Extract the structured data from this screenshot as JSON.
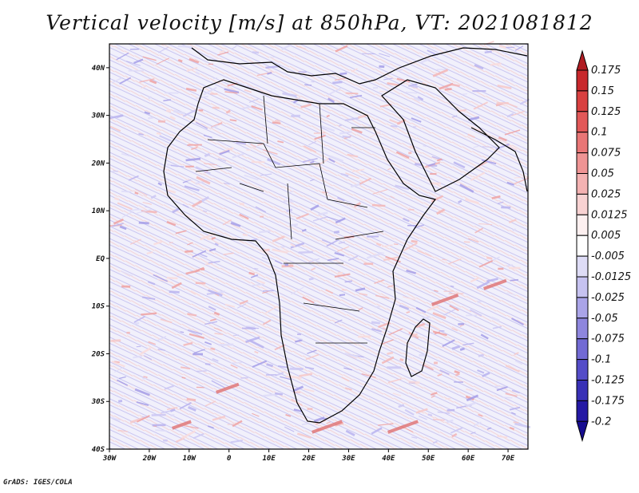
{
  "title": "Vertical velocity [m/s] at 850hPa, VT: 2021081812",
  "footer": "GrADS: IGES/COLA",
  "map": {
    "lon_range": [
      -30,
      75
    ],
    "lat_range": [
      -40,
      45
    ],
    "x_ticks": [
      "30W",
      "20W",
      "10W",
      "0",
      "10E",
      "20E",
      "30E",
      "40E",
      "50E",
      "60E",
      "70E"
    ],
    "y_ticks": [
      "40N",
      "30N",
      "20N",
      "10N",
      "EQ",
      "10S",
      "20S",
      "30S",
      "40S"
    ]
  },
  "colorbar": {
    "labels": [
      "0.175",
      "0.15",
      "0.125",
      "0.1",
      "0.075",
      "0.05",
      "0.025",
      "0.0125",
      "0.005",
      "-0.005",
      "-0.0125",
      "-0.025",
      "-0.05",
      "-0.075",
      "-0.1",
      "-0.125",
      "-0.175",
      "-0.2"
    ],
    "colors": [
      "#b01c22",
      "#c8282c",
      "#d94040",
      "#e25858",
      "#e97676",
      "#ef9494",
      "#f4b2b2",
      "#f8d2d2",
      "#fdf0f0",
      "#ffffff",
      "#dedcf6",
      "#c6c2f0",
      "#aaa4e8",
      "#8e86de",
      "#726ad4",
      "#544cc8",
      "#3830b6",
      "#2418a4",
      "#160c90"
    ]
  }
}
